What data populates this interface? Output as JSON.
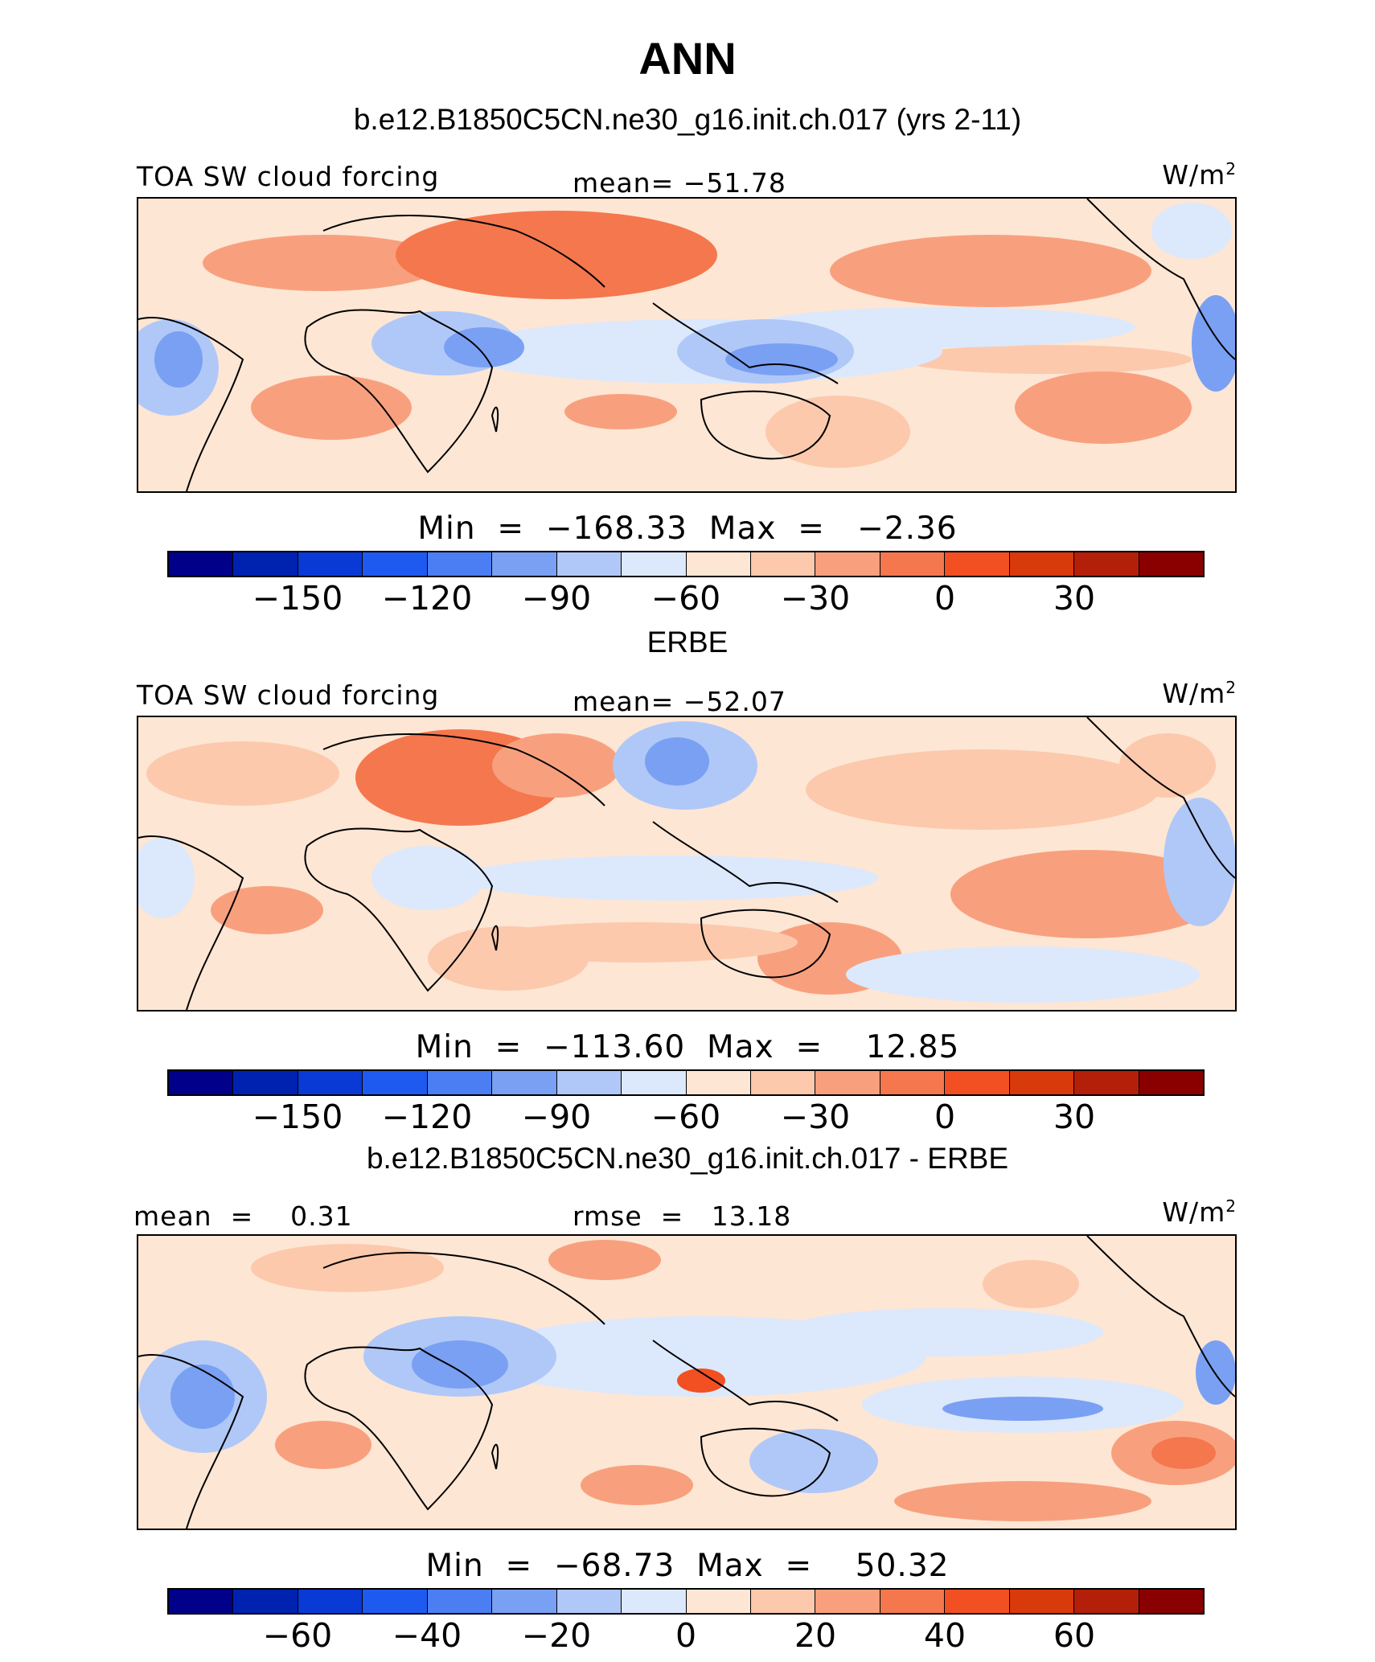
{
  "figure": {
    "title": "ANN",
    "panels": [
      {
        "id": "model",
        "header": "b.e12.B1850C5CN.ne30_g16.init.ch.017 (yrs 2-11)",
        "left_label": "TOA SW cloud forcing",
        "center_label": "mean= −51.78",
        "units_label": "W/m",
        "units_power": "2",
        "minmax": "Min  =  −168.33  Max  =   −2.36",
        "colorbar_ticks": [
          "−150",
          "−120",
          "−90",
          "−60",
          "−30",
          "0",
          "30"
        ]
      },
      {
        "id": "obs",
        "header": "ERBE",
        "left_label": "TOA SW cloud forcing",
        "center_label": "mean= −52.07",
        "units_label": "W/m",
        "units_power": "2",
        "minmax": "Min  =  −113.60  Max  =    12.85",
        "colorbar_ticks": [
          "−150",
          "−120",
          "−90",
          "−60",
          "−30",
          "0",
          "30"
        ]
      },
      {
        "id": "diff",
        "header": "b.e12.B1850C5CN.ne30_g16.init.ch.017 - ERBE",
        "left_label": "mean  =    0.31",
        "center_label": "rmse  =   13.18",
        "units_label": "W/m",
        "units_power": "2",
        "minmax": "Min  =  −68.73  Max  =    50.32",
        "colorbar_ticks": [
          "−60",
          "−40",
          "−20",
          "0",
          "20",
          "40",
          "60"
        ]
      }
    ]
  },
  "colors": {
    "palette": [
      "#00008b",
      "#0022b0",
      "#0a3ad6",
      "#1f5af0",
      "#4a7ef2",
      "#7aa0f3",
      "#b0c8f8",
      "#dce8fc",
      "#fde6d4",
      "#fcc9ad",
      "#f8a07e",
      "#f5774e",
      "#f24f22",
      "#d93a0c",
      "#b31f08",
      "#8a0000"
    ]
  }
}
